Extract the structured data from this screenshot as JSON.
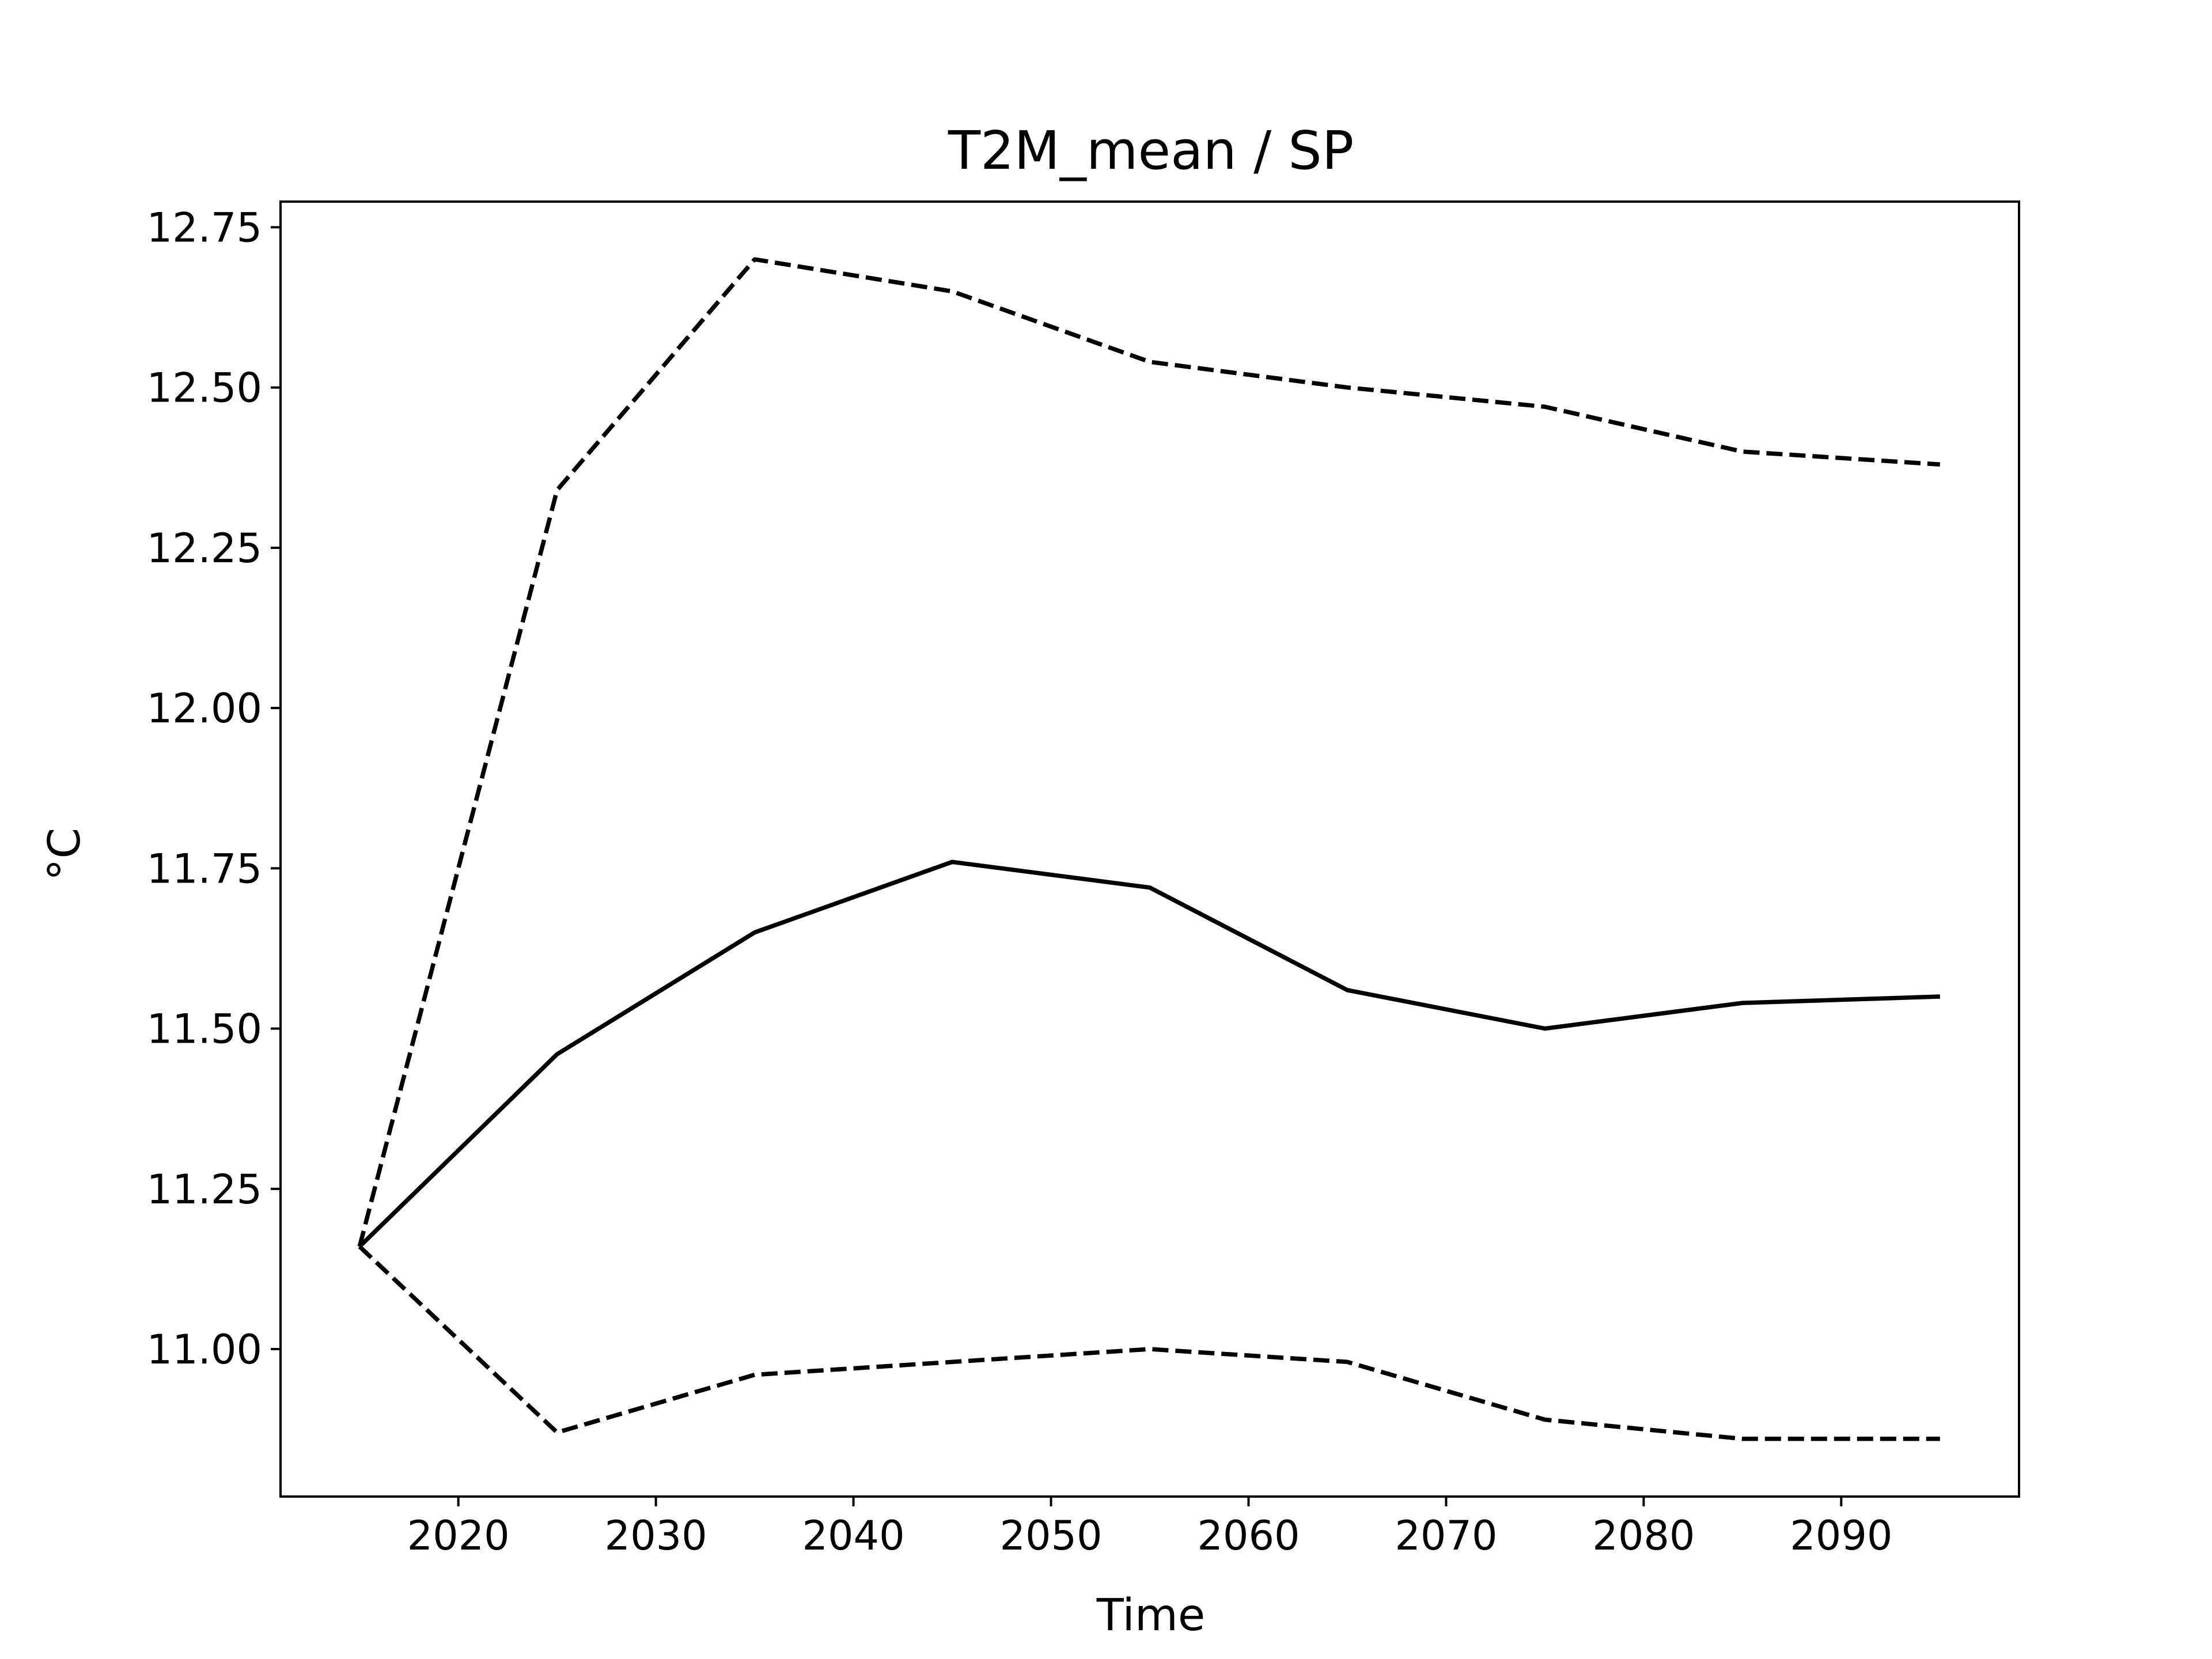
{
  "chart_data": {
    "type": "line",
    "title": "T2M_mean / SP",
    "xlabel": "Time",
    "ylabel": "°C",
    "xlim": [
      2011,
      2099
    ],
    "ylim": [
      10.77,
      12.79
    ],
    "xticks": [
      2020,
      2030,
      2040,
      2050,
      2060,
      2070,
      2080,
      2090
    ],
    "xtick_labels": [
      "2020",
      "2030",
      "2040",
      "2050",
      "2060",
      "2070",
      "2080",
      "2090"
    ],
    "yticks": [
      11.0,
      11.25,
      11.5,
      11.75,
      12.0,
      12.25,
      12.5,
      12.75
    ],
    "ytick_labels": [
      "11.00",
      "11.25",
      "11.50",
      "11.75",
      "12.00",
      "12.25",
      "12.50",
      "12.75"
    ],
    "x": [
      2015,
      2025,
      2035,
      2045,
      2055,
      2065,
      2075,
      2085,
      2095
    ],
    "series": [
      {
        "style": "solid",
        "color": "#000000",
        "values": [
          11.16,
          11.46,
          11.65,
          11.76,
          11.72,
          11.56,
          11.5,
          11.54,
          11.55
        ]
      },
      {
        "style": "dashed",
        "color": "#000000",
        "values": [
          11.16,
          12.34,
          12.7,
          12.65,
          12.54,
          12.5,
          12.47,
          12.4,
          12.38
        ]
      },
      {
        "style": "dashed",
        "color": "#000000",
        "values": [
          11.16,
          10.87,
          10.96,
          10.98,
          11.0,
          10.98,
          10.89,
          10.86,
          10.86
        ]
      }
    ],
    "grid": false,
    "legend": "none"
  }
}
